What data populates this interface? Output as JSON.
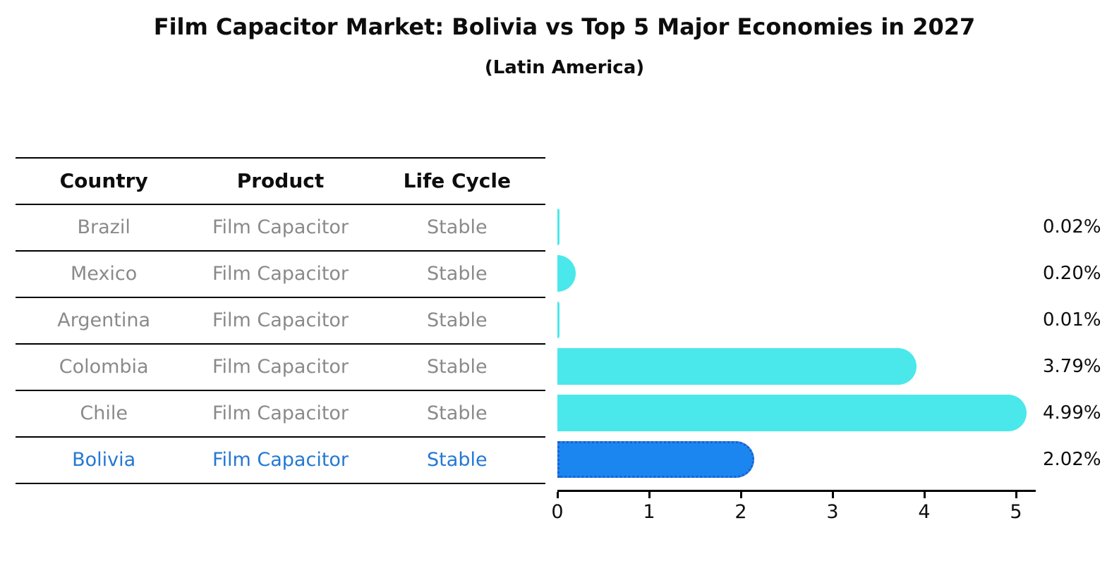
{
  "title": "Film Capacitor Market: Bolivia vs Top 5 Major Economies in 2027",
  "subtitle": "(Latin America)",
  "table": {
    "headers": [
      "Country",
      "Product",
      "Life Cycle"
    ],
    "rows": [
      {
        "country": "Brazil",
        "product": "Film Capacitor",
        "life_cycle": "Stable",
        "highlighted": false
      },
      {
        "country": "Mexico",
        "product": "Film Capacitor",
        "life_cycle": "Stable",
        "highlighted": false
      },
      {
        "country": "Argentina",
        "product": "Film Capacitor",
        "life_cycle": "Stable",
        "highlighted": false
      },
      {
        "country": "Colombia",
        "product": "Film Capacitor",
        "life_cycle": "Stable",
        "highlighted": false
      },
      {
        "country": "Chile",
        "product": "Film Capacitor",
        "life_cycle": "Stable",
        "highlighted": false
      },
      {
        "country": "Bolivia",
        "product": "Film Capacitor",
        "life_cycle": "Stable",
        "highlighted": true
      }
    ]
  },
  "chart_data": {
    "type": "bar",
    "orientation": "horizontal",
    "title": "Film Capacitor Market: Bolivia vs Top 5 Major Economies in 2027",
    "subtitle": "(Latin America)",
    "categories": [
      "Brazil",
      "Mexico",
      "Argentina",
      "Colombia",
      "Chile",
      "Bolivia"
    ],
    "values": [
      0.02,
      0.2,
      0.01,
      3.79,
      4.99,
      2.02
    ],
    "value_labels": [
      "0.02%",
      "0.20%",
      "0.01%",
      "3.79%",
      "4.99%",
      "2.02%"
    ],
    "xlabel": "",
    "ylabel": "",
    "xlim": [
      0,
      5.2
    ],
    "xticks": [
      "0",
      "1",
      "2",
      "3",
      "4",
      "5"
    ],
    "grid": false,
    "legend": false,
    "highlight_index": 5,
    "colors": {
      "bar_default": "#4ae8ea",
      "bar_highlight": "#1c86f0",
      "bar_highlight_border": "#1b5fd0",
      "highlight_text": "#2478d4",
      "row_text": "#8a8a8a",
      "header_text": "#0d0d0d",
      "axis": "#000000"
    }
  }
}
